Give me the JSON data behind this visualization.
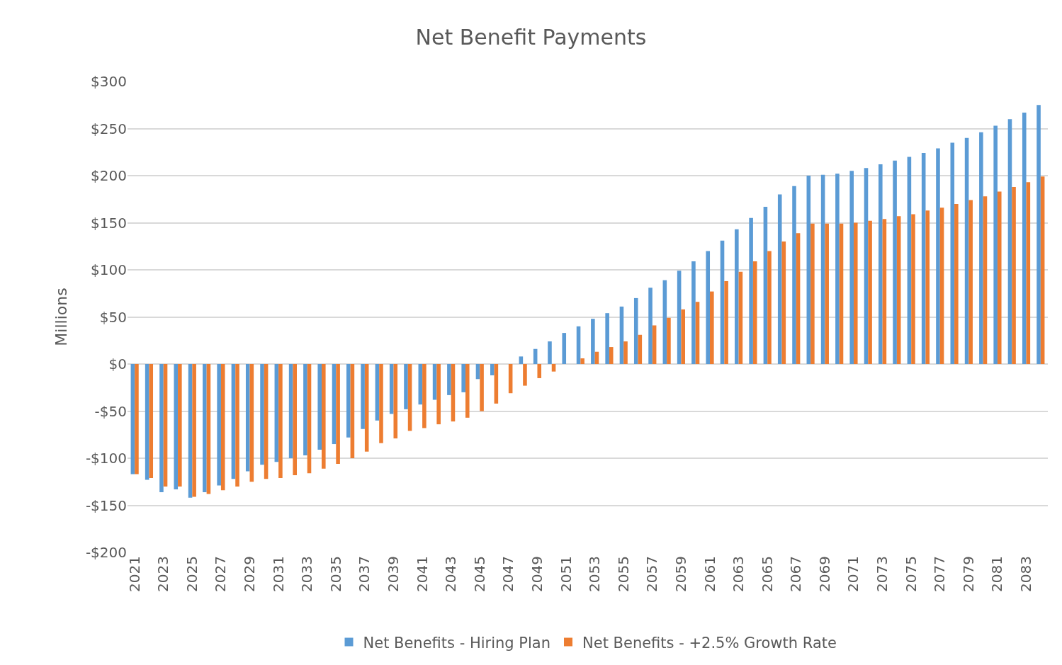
{
  "chart_data": {
    "type": "bar",
    "title": "Net Benefit Payments",
    "ylabel": "Millions",
    "categories": [
      "2021",
      null,
      "2023",
      null,
      "2025",
      null,
      "2027",
      null,
      "2029",
      null,
      "2031",
      null,
      "2033",
      null,
      "2035",
      null,
      "2037",
      null,
      "2039",
      null,
      "2041",
      null,
      "2043",
      null,
      "2045",
      null,
      "2047",
      null,
      "2049",
      null,
      "2051",
      null,
      "2053",
      null,
      "2055",
      null,
      "2057",
      null,
      "2059",
      null,
      "2061",
      null,
      "2063",
      null,
      "2065",
      null,
      "2067",
      null,
      "2069",
      null,
      "2071",
      null,
      "2073",
      null,
      "2075",
      null,
      "2077",
      null,
      "2079",
      null,
      "2081",
      null,
      "2083",
      null
    ],
    "series": [
      {
        "name": "Net Benefits - Hiring Plan",
        "color": "#5b9bd5",
        "values": [
          -117,
          -123,
          -136,
          -133,
          -142,
          -136,
          -129,
          -122,
          -114,
          -107,
          -104,
          -100,
          -97,
          -91,
          -85,
          -78,
          -69,
          -60,
          -53,
          -48,
          -43,
          -38,
          -33,
          -30,
          -16,
          -12,
          0,
          8,
          16,
          24,
          33,
          40,
          48,
          54,
          61,
          70,
          81,
          89,
          99,
          109,
          120,
          131,
          143,
          155,
          167,
          180,
          189,
          200,
          201,
          202,
          205,
          208,
          212,
          216,
          220,
          224,
          229,
          235,
          240,
          246,
          253,
          260,
          267,
          275
        ]
      },
      {
        "name": "Net Benefits - +2.5% Growth Rate",
        "color": "#ed7d31",
        "values": [
          -117,
          -121,
          -130,
          -130,
          -141,
          -138,
          -134,
          -130,
          -125,
          -122,
          -121,
          -118,
          -116,
          -111,
          -106,
          -100,
          -93,
          -84,
          -79,
          -71,
          -68,
          -64,
          -61,
          -57,
          -50,
          -42,
          -31,
          -23,
          -15,
          -8,
          0,
          6,
          13,
          18,
          24,
          31,
          41,
          49,
          58,
          66,
          77,
          88,
          98,
          109,
          120,
          130,
          139,
          149,
          149,
          149,
          150,
          152,
          154,
          157,
          159,
          163,
          166,
          170,
          174,
          178,
          183,
          188,
          193,
          199
        ]
      }
    ],
    "ylim": [
      -200,
      300
    ],
    "yticks": [
      {
        "value": -200,
        "label": "-$200"
      },
      {
        "value": -150,
        "label": "-$150"
      },
      {
        "value": -100,
        "label": "-$100"
      },
      {
        "value": -50,
        "label": "-$50"
      },
      {
        "value": 0,
        "label": "$0"
      },
      {
        "value": 50,
        "label": "$50"
      },
      {
        "value": 100,
        "label": "$100"
      },
      {
        "value": 150,
        "label": "$150"
      },
      {
        "value": 200,
        "label": "$200"
      },
      {
        "value": 250,
        "label": "$250"
      },
      {
        "value": 300,
        "label": "$300"
      }
    ],
    "grid": "y",
    "legend": "bottom"
  }
}
